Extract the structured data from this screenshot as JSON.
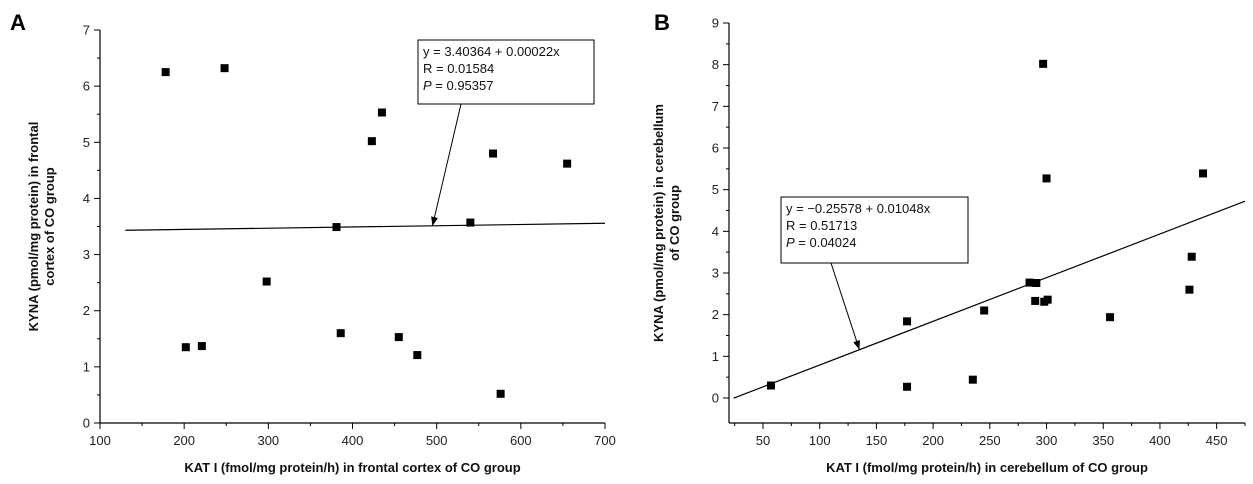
{
  "chart_data": [
    {
      "type": "scatter",
      "panel_label": "A",
      "xlabel": "KAT I (fmol/mg protein/h) in frontal cortex of CO group",
      "ylabel": [
        "KYNA (pmol/mg protein) in frontal",
        "cortex of CO group"
      ],
      "xlim": [
        100,
        700
      ],
      "ylim": [
        0,
        7
      ],
      "xticks": [
        100,
        200,
        300,
        400,
        500,
        600,
        700
      ],
      "yticks": [
        0,
        1,
        2,
        3,
        4,
        5,
        6,
        7
      ],
      "points": [
        {
          "x": 178,
          "y": 6.25
        },
        {
          "x": 248,
          "y": 6.32
        },
        {
          "x": 202,
          "y": 1.35
        },
        {
          "x": 221,
          "y": 1.37
        },
        {
          "x": 298,
          "y": 2.52
        },
        {
          "x": 381,
          "y": 3.49
        },
        {
          "x": 386,
          "y": 1.6
        },
        {
          "x": 423,
          "y": 5.02
        },
        {
          "x": 435,
          "y": 5.53
        },
        {
          "x": 455,
          "y": 1.53
        },
        {
          "x": 477,
          "y": 1.21
        },
        {
          "x": 540,
          "y": 3.57
        },
        {
          "x": 567,
          "y": 4.8
        },
        {
          "x": 576,
          "y": 0.52
        },
        {
          "x": 655,
          "y": 4.62
        }
      ],
      "fit": {
        "intercept": 3.40364,
        "slope": 0.00022,
        "x_range": [
          130,
          700
        ]
      },
      "annotation": {
        "lines": [
          "y = 3.40364 + 0.00022x",
          "R = 0.01584",
          "P = 0.95357"
        ],
        "arrow_to": {
          "x": 495,
          "y": 3.51
        }
      }
    },
    {
      "type": "scatter",
      "panel_label": "B",
      "xlabel": "KAT I (fmol/mg protein/h) in cerebellum of CO group",
      "ylabel": [
        "KYNA (pmol/mg protein) in cerebellum",
        "of CO group"
      ],
      "xlim": [
        20,
        475
      ],
      "ylim": [
        -0.6,
        9
      ],
      "xticks": [
        50,
        100,
        150,
        200,
        250,
        300,
        350,
        400,
        450
      ],
      "yticks": [
        0,
        1,
        2,
        3,
        4,
        5,
        6,
        7,
        8,
        9
      ],
      "points": [
        {
          "x": 57,
          "y": 0.3
        },
        {
          "x": 177,
          "y": 1.84
        },
        {
          "x": 177,
          "y": 0.27
        },
        {
          "x": 235,
          "y": 0.44
        },
        {
          "x": 245,
          "y": 2.1
        },
        {
          "x": 285,
          "y": 2.77
        },
        {
          "x": 291,
          "y": 2.76
        },
        {
          "x": 290,
          "y": 2.33
        },
        {
          "x": 297,
          "y": 8.02
        },
        {
          "x": 298,
          "y": 2.31
        },
        {
          "x": 301,
          "y": 2.36
        },
        {
          "x": 300,
          "y": 5.27
        },
        {
          "x": 356,
          "y": 1.94
        },
        {
          "x": 426,
          "y": 2.6
        },
        {
          "x": 428,
          "y": 3.39
        },
        {
          "x": 438,
          "y": 5.39
        }
      ],
      "fit": {
        "intercept": -0.25578,
        "slope": 0.01048,
        "x_range": [
          24,
          475
        ]
      },
      "annotation": {
        "lines": [
          "y = −0.25578 + 0.01048x",
          "R = 0.51713",
          "P = 0.04024"
        ],
        "arrow_to": {
          "x": 135,
          "y": 1.16
        }
      }
    }
  ]
}
